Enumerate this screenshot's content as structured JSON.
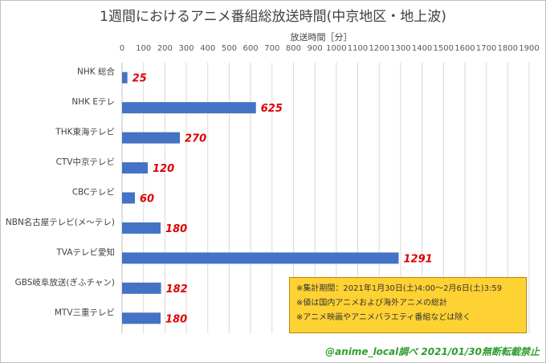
{
  "chart_data": {
    "type": "bar",
    "orientation": "horizontal",
    "title": "1週間におけるアニメ番組総放送時間(中京地区・地上波)",
    "xlabel": "放送時間［分］",
    "ylabel": "",
    "xlim": [
      0,
      1900
    ],
    "x_ticks": [
      "0",
      "100",
      "200",
      "300",
      "400",
      "500",
      "600",
      "700",
      "800",
      "900",
      "1000",
      "1100",
      "1200",
      "1300",
      "1400",
      "1500",
      "1600",
      "1700",
      "1800",
      "1900"
    ],
    "categories": [
      "NHK 総合",
      "NHK Eテレ",
      "THK東海テレビ",
      "CTV中京テレビ",
      "CBCテレビ",
      "NBN名古屋テレビ(メ～テレ)",
      "TVAテレビ愛知",
      "GBS岐阜放送(ぎふチャン)",
      "MTV三重テレビ"
    ],
    "values": [
      25,
      625,
      270,
      120,
      60,
      180,
      1291,
      182,
      180
    ],
    "data_labels": [
      "25",
      "625",
      "270",
      "120",
      "60",
      "180",
      "1291",
      "182",
      "180"
    ],
    "grid": true,
    "bar_color": "#4472c4",
    "label_color": "#e00000"
  },
  "notes": [
    "※集計期間：2021年1月30日(土)4:00～2月6日(土)3:59",
    "※値は国内アニメおよび海外アニメの総計",
    "※アニメ映画やアニメバラエティ番組などは除く"
  ],
  "credit": "@anime_local調べ 2021/01/30無断転載禁止",
  "colors": {
    "note_bg": "#ffd233",
    "credit": "#2e9e2e"
  }
}
